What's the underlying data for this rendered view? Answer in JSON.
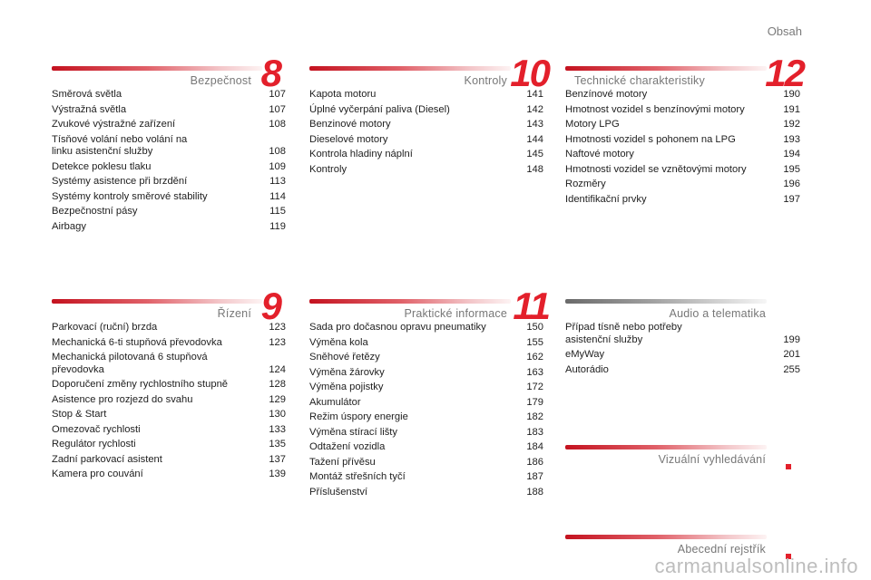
{
  "page_label": "Obsah",
  "sections": [
    {
      "title": "Bezpečnost",
      "number": "8",
      "items": [
        {
          "t": "Směrová světla",
          "p": "107"
        },
        {
          "t": "Výstražná světla",
          "p": "107"
        },
        {
          "t": "Zvukové výstražné zařízení",
          "p": "108"
        },
        {
          "t": "Tísňové volání nebo volání na\n  linku asistenční služby",
          "p": "108"
        },
        {
          "t": "Detekce poklesu tlaku",
          "p": "109"
        },
        {
          "t": "Systémy asistence při brzdění",
          "p": "113"
        },
        {
          "t": "Systémy kontroly směrové stability",
          "p": "114"
        },
        {
          "t": "Bezpečnostní pásy",
          "p": "115"
        },
        {
          "t": "Airbagy",
          "p": "119"
        }
      ]
    },
    {
      "title": "Kontroly",
      "number": "10",
      "items": [
        {
          "t": "Kapota motoru",
          "p": "141"
        },
        {
          "t": "Úplné vyčerpání paliva (Diesel)",
          "p": "142"
        },
        {
          "t": "Benzinové motory",
          "p": "143"
        },
        {
          "t": "Dieselové motory",
          "p": "144"
        },
        {
          "t": "Kontrola hladiny náplní",
          "p": "145"
        },
        {
          "t": "Kontroly",
          "p": "148"
        }
      ]
    },
    {
      "title": "Technické charakteristiky",
      "number": "12",
      "items": [
        {
          "t": "Benzínové motory",
          "p": "190"
        },
        {
          "t": "Hmotnost vozidel s benzínovými motory",
          "p": "191"
        },
        {
          "t": "Motory LPG",
          "p": "192"
        },
        {
          "t": "Hmotnosti vozidel s pohonem na LPG",
          "p": "193"
        },
        {
          "t": "Naftové motory",
          "p": "194"
        },
        {
          "t": "Hmotnosti vozidel se vznětovými motory",
          "p": "195"
        },
        {
          "t": "Rozměry",
          "p": "196"
        },
        {
          "t": "Identifikační prvky",
          "p": "197"
        }
      ]
    },
    {
      "title": "Řízení",
      "number": "9",
      "items": [
        {
          "t": "Parkovací (ruční) brzda",
          "p": "123"
        },
        {
          "t": "Mechanická 6-ti stupňová převodovka",
          "p": "123"
        },
        {
          "t": "Mechanická pilotovaná 6 stupňová\n  převodovka",
          "p": "124"
        },
        {
          "t": "Doporučení změny rychlostního stupně",
          "p": "128"
        },
        {
          "t": "Asistence pro rozjezd do svahu",
          "p": "129"
        },
        {
          "t": "Stop & Start",
          "p": "130"
        },
        {
          "t": "Omezovač rychlosti",
          "p": "133"
        },
        {
          "t": "Regulátor rychlosti",
          "p": "135"
        },
        {
          "t": "Zadní parkovací asistent",
          "p": "137"
        },
        {
          "t": "Kamera pro couvání",
          "p": "139"
        }
      ]
    },
    {
      "title": "Praktické informace",
      "number": "11",
      "items": [
        {
          "t": "Sada pro dočasnou opravu pneumatiky",
          "p": "150"
        },
        {
          "t": "Výměna kola",
          "p": "155"
        },
        {
          "t": "Sněhové řetězy",
          "p": "162"
        },
        {
          "t": "Výměna žárovky",
          "p": "163"
        },
        {
          "t": "Výměna pojistky",
          "p": "172"
        },
        {
          "t": "Akumulátor",
          "p": "179"
        },
        {
          "t": "Režim úspory energie",
          "p": "182"
        },
        {
          "t": "Výměna stírací lišty",
          "p": "183"
        },
        {
          "t": "Odtažení vozidla",
          "p": "184"
        },
        {
          "t": "Tažení přívěsu",
          "p": "186"
        },
        {
          "t": "Montáž střešních tyčí",
          "p": "187"
        },
        {
          "t": "Příslušenství",
          "p": "188"
        }
      ]
    },
    {
      "title": "Audio a telematika",
      "number": "",
      "items": [
        {
          "t": "Případ tísně nebo potřeby\n  asistenční služby",
          "p": "199"
        },
        {
          "t": "eMyWay",
          "p": "201"
        },
        {
          "t": "Autorádio",
          "p": "255"
        }
      ]
    },
    {
      "title": "Vizuální vyhledávání",
      "number": "",
      "items": []
    },
    {
      "title": "Abecední rejstřík",
      "number": "",
      "items": []
    }
  ],
  "watermark": "carmanualsonline.info",
  "colors": {
    "accent": "#e3202b",
    "text": "#1e1e1e",
    "muted": "#777777"
  }
}
